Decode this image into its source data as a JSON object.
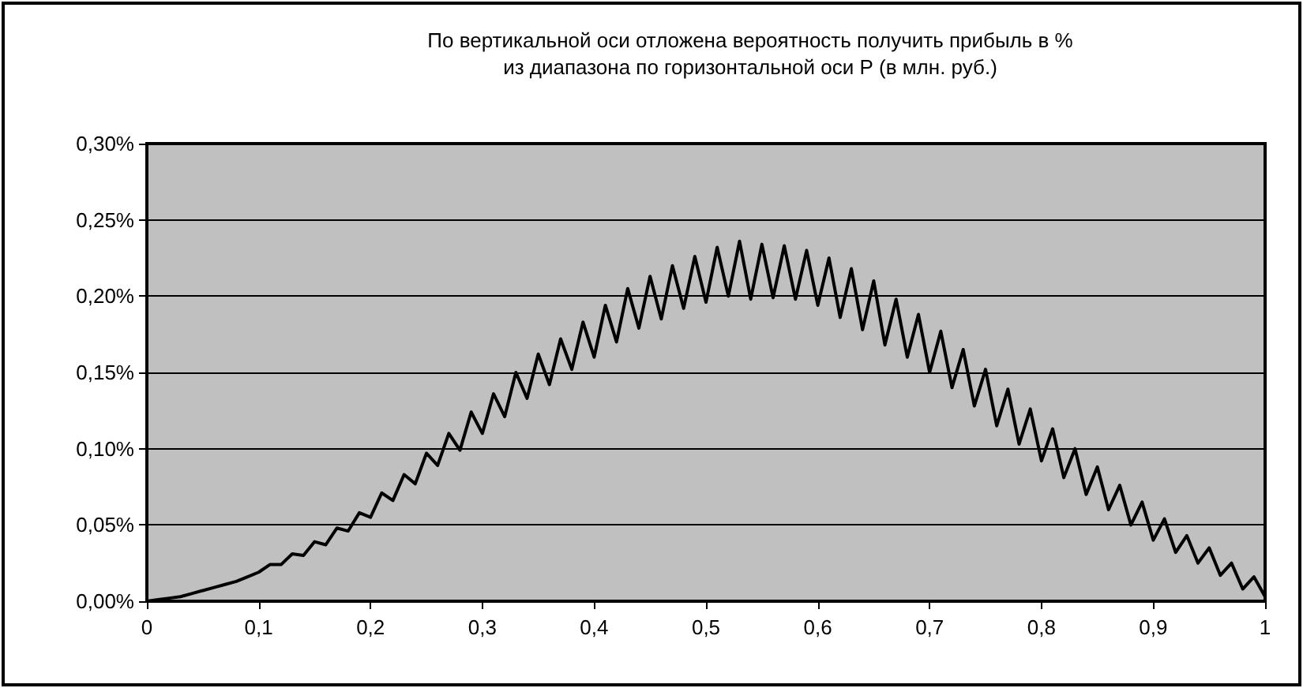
{
  "chart_data": {
    "type": "line",
    "title": "По вертикальной оси отложена вероятность получить прибыль в %\nиз диапазона по горизонтальной оси Р (в млн. руб.)",
    "x": [
      0,
      0.01,
      0.02,
      0.03,
      0.04,
      0.05,
      0.06,
      0.07,
      0.08,
      0.09,
      0.1,
      0.11,
      0.12,
      0.13,
      0.14,
      0.15,
      0.16,
      0.17,
      0.18,
      0.19,
      0.2,
      0.21,
      0.22,
      0.23,
      0.24,
      0.25,
      0.26,
      0.27,
      0.28,
      0.29,
      0.3,
      0.31,
      0.32,
      0.33,
      0.34,
      0.35,
      0.36,
      0.37,
      0.38,
      0.39,
      0.4,
      0.41,
      0.42,
      0.43,
      0.44,
      0.45,
      0.46,
      0.47,
      0.48,
      0.49,
      0.5,
      0.51,
      0.52,
      0.53,
      0.54,
      0.55,
      0.56,
      0.57,
      0.58,
      0.59,
      0.6,
      0.61,
      0.62,
      0.63,
      0.64,
      0.65,
      0.66,
      0.67,
      0.68,
      0.69,
      0.7,
      0.71,
      0.72,
      0.73,
      0.74,
      0.75,
      0.76,
      0.77,
      0.78,
      0.79,
      0.8,
      0.81,
      0.82,
      0.83,
      0.84,
      0.85,
      0.86,
      0.87,
      0.88,
      0.89,
      0.9,
      0.91,
      0.92,
      0.93,
      0.94,
      0.95,
      0.96,
      0.97,
      0.98,
      0.99,
      1
    ],
    "series": [
      {
        "color": "#000000",
        "values": [
          0,
          0.001,
          0.002,
          0.003,
          0.005,
          0.007,
          0.009,
          0.011,
          0.013,
          0.016,
          0.019,
          0.024,
          0.024,
          0.031,
          0.03,
          0.039,
          0.037,
          0.048,
          0.046,
          0.058,
          0.055,
          0.071,
          0.066,
          0.083,
          0.077,
          0.097,
          0.089,
          0.11,
          0.099,
          0.124,
          0.11,
          0.136,
          0.121,
          0.15,
          0.133,
          0.162,
          0.142,
          0.172,
          0.152,
          0.183,
          0.16,
          0.194,
          0.17,
          0.205,
          0.179,
          0.213,
          0.185,
          0.22,
          0.192,
          0.226,
          0.196,
          0.232,
          0.2,
          0.236,
          0.198,
          0.234,
          0.199,
          0.233,
          0.198,
          0.23,
          0.194,
          0.225,
          0.186,
          0.218,
          0.178,
          0.21,
          0.168,
          0.198,
          0.16,
          0.188,
          0.15,
          0.177,
          0.14,
          0.165,
          0.128,
          0.152,
          0.115,
          0.139,
          0.103,
          0.126,
          0.092,
          0.113,
          0.081,
          0.1,
          0.07,
          0.088,
          0.06,
          0.076,
          0.05,
          0.065,
          0.04,
          0.054,
          0.032,
          0.043,
          0.025,
          0.035,
          0.017,
          0.025,
          0.008,
          0.016,
          0.003
        ]
      }
    ],
    "xlim": [
      0,
      1
    ],
    "xticks": [
      0,
      {
        "value": 0.1,
        "label": "0,1"
      },
      {
        "value": 0.2,
        "label": "0,2"
      },
      {
        "value": 0.3,
        "label": "0,3"
      },
      {
        "value": 0.4,
        "label": "0,4"
      },
      {
        "value": 0.5,
        "label": "0,5"
      },
      {
        "value": 0.6,
        "label": "0,6"
      },
      {
        "value": 0.7,
        "label": "0,7"
      },
      {
        "value": 0.8,
        "label": "0,8"
      },
      {
        "value": 0.9,
        "label": "0,9"
      },
      1
    ],
    "ylim": [
      0,
      0.3
    ],
    "yticks": [
      {
        "value": 0,
        "label": "0,00%"
      },
      {
        "value": 0.05,
        "label": "0,05%"
      },
      {
        "value": 0.1,
        "label": "0,10%"
      },
      {
        "value": 0.15,
        "label": "0,15%"
      },
      {
        "value": 0.2,
        "label": "0,20%"
      },
      {
        "value": 0.25,
        "label": "0,25%"
      },
      {
        "value": 0.3,
        "label": "0,30%"
      }
    ],
    "grid": "y",
    "marker": "none",
    "line_style": "solid"
  }
}
